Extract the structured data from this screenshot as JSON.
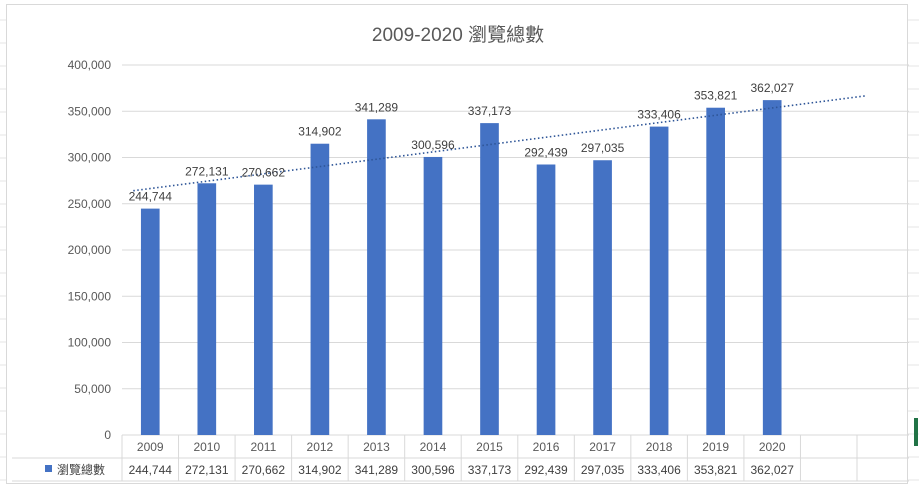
{
  "chart_data": {
    "type": "bar",
    "title": "2009-2020 瀏覽總數",
    "categories": [
      "2009",
      "2010",
      "2011",
      "2012",
      "2013",
      "2014",
      "2015",
      "2016",
      "2017",
      "2018",
      "2019",
      "2020"
    ],
    "series": [
      {
        "name": "瀏覽總數",
        "values": [
          244744,
          272131,
          270662,
          314902,
          341289,
          300596,
          337173,
          292439,
          297035,
          333406,
          353821,
          362027
        ],
        "data_labels": [
          "244,744",
          "272,131",
          "270,662",
          "314,902",
          "341,289",
          "300,596",
          "337,173",
          "292,439",
          "297,035",
          "333,406",
          "353,821",
          "362,027"
        ],
        "color": "#4472c4"
      }
    ],
    "ylim": [
      0,
      400000
    ],
    "y_ticks": [
      0,
      50000,
      100000,
      150000,
      200000,
      250000,
      300000,
      350000,
      400000
    ],
    "y_tick_labels": [
      "0",
      "50,000",
      "100,000",
      "150,000",
      "200,000",
      "250,000",
      "300,000",
      "350,000",
      "400,000"
    ],
    "trendline": {
      "style": "dotted linear",
      "color": "#2e5597"
    },
    "grid": true,
    "data_table": true,
    "legend": "data-table-key"
  }
}
